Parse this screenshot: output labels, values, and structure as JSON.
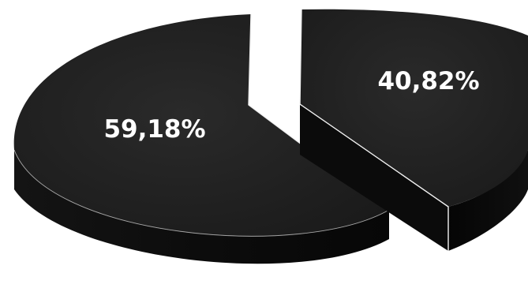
{
  "chart_data": {
    "type": "pie",
    "three_d": true,
    "exploded": true,
    "categories": [
      "",
      ""
    ],
    "values": [
      59.18,
      40.82
    ],
    "data_labels": [
      "59,18%",
      "40,82%"
    ],
    "title": "",
    "legend": "none",
    "colors": {
      "top": "#1f1f1f",
      "side": "#0a0a0a",
      "edge": "#f2f2f2",
      "label": "#ffffff"
    }
  }
}
